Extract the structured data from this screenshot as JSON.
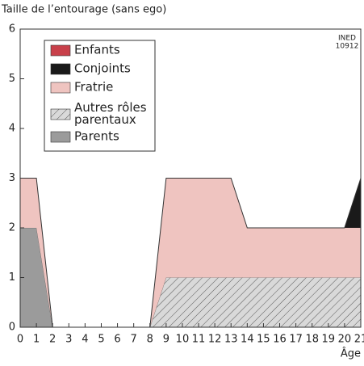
{
  "chart_data": {
    "type": "area",
    "ylabel": "Taille de l’entourage (sans ego)",
    "xlabel": "Âge",
    "annotation": [
      "INED",
      "10912"
    ],
    "x": [
      0,
      1,
      2,
      3,
      4,
      5,
      6,
      7,
      8,
      9,
      10,
      11,
      12,
      13,
      14,
      15,
      16,
      17,
      18,
      19,
      20,
      21
    ],
    "stacked": true,
    "series": [
      {
        "name": "Parents",
        "color": "#9b9b9b",
        "hatch": false,
        "values": [
          2,
          2,
          0,
          0,
          0,
          0,
          0,
          0,
          0,
          0,
          0,
          0,
          0,
          0,
          0,
          0,
          0,
          0,
          0,
          0,
          0,
          0
        ]
      },
      {
        "name": "Autres rôles parentaux",
        "color": "#d9d9d9",
        "hatch": true,
        "values": [
          0,
          0,
          0,
          0,
          0,
          0,
          0,
          0,
          0,
          1,
          1,
          1,
          1,
          1,
          1,
          1,
          1,
          1,
          1,
          1,
          1,
          1
        ]
      },
      {
        "name": "Fratrie",
        "color": "#efc4c0",
        "hatch": false,
        "values": [
          1,
          1,
          0,
          0,
          0,
          0,
          0,
          0,
          0,
          2,
          2,
          2,
          2,
          2,
          1,
          1,
          1,
          1,
          1,
          1,
          1,
          1
        ]
      },
      {
        "name": "Conjoints",
        "color": "#1a1a1a",
        "hatch": false,
        "values": [
          0,
          0,
          0,
          0,
          0,
          0,
          0,
          0,
          0,
          0,
          0,
          0,
          0,
          0,
          0,
          0,
          0,
          0,
          0,
          0,
          0,
          1
        ]
      },
      {
        "name": "Enfants",
        "color": "#c8404a",
        "hatch": false,
        "values": [
          0,
          0,
          0,
          0,
          0,
          0,
          0,
          0,
          0,
          0,
          0,
          0,
          0,
          0,
          0,
          0,
          0,
          0,
          0,
          0,
          0,
          0
        ]
      }
    ],
    "xlim": [
      0,
      21
    ],
    "ylim": [
      0,
      6
    ],
    "xticks": [
      0,
      1,
      2,
      3,
      4,
      5,
      6,
      7,
      8,
      9,
      10,
      11,
      12,
      13,
      14,
      15,
      16,
      17,
      18,
      19,
      20,
      21
    ],
    "yticks": [
      0,
      1,
      2,
      3,
      4,
      5,
      6
    ],
    "legend": "upper left"
  }
}
